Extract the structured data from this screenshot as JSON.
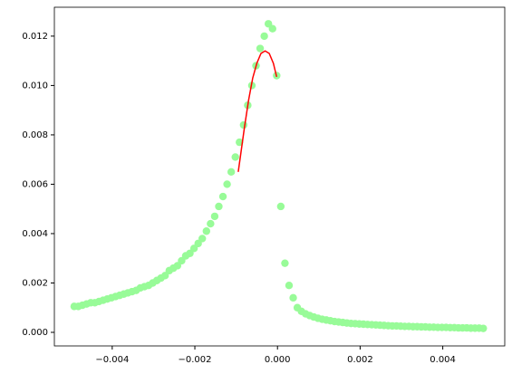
{
  "chart_data": {
    "type": "scatter",
    "xlim": [
      -0.0054,
      0.0055
    ],
    "ylim": [
      -0.00055,
      0.01317
    ],
    "xticks": [
      {
        "value": -0.004,
        "label": "−0.004"
      },
      {
        "value": -0.002,
        "label": "−0.002"
      },
      {
        "value": 0,
        "label": "0.000"
      },
      {
        "value": 0.002,
        "label": "0.002"
      },
      {
        "value": 0.004,
        "label": "0.004"
      }
    ],
    "yticks": [
      {
        "value": 0,
        "label": "0.000"
      },
      0.002,
      0.004,
      0.006,
      0.008,
      {
        "value": 0.01,
        "label": "0.010"
      },
      0.012
    ],
    "series": [
      {
        "type": "scatter",
        "color": "#98fb98",
        "x": [
          -0.00492,
          -0.00482,
          -0.00472,
          -0.00462,
          -0.00452,
          -0.00442,
          -0.00432,
          -0.00422,
          -0.00412,
          -0.00402,
          -0.00392,
          -0.00382,
          -0.00372,
          -0.00362,
          -0.00352,
          -0.00342,
          -0.00332,
          -0.00322,
          -0.00312,
          -0.00302,
          -0.00292,
          -0.00282,
          -0.00272,
          -0.00262,
          -0.00252,
          -0.00242,
          -0.00232,
          -0.00222,
          -0.00212,
          -0.00202,
          -0.00192,
          -0.00182,
          -0.00172,
          -0.00162,
          -0.00152,
          -0.00142,
          -0.00132,
          -0.00122,
          -0.00112,
          -0.00102,
          -0.00092,
          -0.00082,
          -0.00072,
          -0.00062,
          -0.00052,
          -0.00042,
          -0.00032,
          -0.00022,
          -0.00012,
          -2e-05,
          8e-05,
          0.00018,
          0.00028,
          0.00038,
          0.00048,
          0.00058,
          0.00068,
          0.00078,
          0.00088,
          0.00098,
          0.00108,
          0.00118,
          0.00128,
          0.00138,
          0.00148,
          0.00158,
          0.00168,
          0.00178,
          0.00188,
          0.00198,
          0.00208,
          0.00218,
          0.00228,
          0.00238,
          0.00248,
          0.00258,
          0.00268,
          0.00278,
          0.00288,
          0.00298,
          0.00308,
          0.00318,
          0.00328,
          0.00338,
          0.00348,
          0.00358,
          0.00368,
          0.00378,
          0.00388,
          0.00398,
          0.00408,
          0.00418,
          0.00428,
          0.00438,
          0.00448,
          0.00458,
          0.00468,
          0.00478,
          0.00488,
          0.00498
        ],
        "values": [
          0.00105,
          0.00105,
          0.0011,
          0.00115,
          0.0012,
          0.0012,
          0.00125,
          0.0013,
          0.00135,
          0.0014,
          0.00145,
          0.0015,
          0.00155,
          0.0016,
          0.00165,
          0.0017,
          0.0018,
          0.00185,
          0.0019,
          0.002,
          0.0021,
          0.0022,
          0.0023,
          0.0025,
          0.0026,
          0.0027,
          0.0029,
          0.0031,
          0.0032,
          0.0034,
          0.0036,
          0.0038,
          0.0041,
          0.0044,
          0.0047,
          0.0051,
          0.0055,
          0.006,
          0.0065,
          0.0071,
          0.0077,
          0.0084,
          0.0092,
          0.01,
          0.0108,
          0.0115,
          0.012,
          0.0125,
          0.0123,
          0.0104,
          0.0051,
          0.0028,
          0.0019,
          0.0014,
          0.001,
          0.00085,
          0.00075,
          0.00068,
          0.00062,
          0.00057,
          0.00053,
          0.0005,
          0.00047,
          0.00044,
          0.00042,
          0.0004,
          0.00038,
          0.00036,
          0.00035,
          0.00034,
          0.00033,
          0.00032,
          0.00031,
          0.0003,
          0.00029,
          0.00028,
          0.00027,
          0.00026,
          0.00026,
          0.00025,
          0.00024,
          0.00024,
          0.00023,
          0.00023,
          0.00022,
          0.00022,
          0.00021,
          0.00021,
          0.0002,
          0.0002,
          0.0002,
          0.00019,
          0.00019,
          0.00018,
          0.00018,
          0.00018,
          0.00017,
          0.00017,
          0.00017,
          0.00016
        ]
      },
      {
        "type": "line",
        "color": "#ff0000",
        "x": [
          -0.00095,
          -0.0009,
          -0.0008,
          -0.0007,
          -0.0006,
          -0.0005,
          -0.0004,
          -0.0003,
          -0.0002,
          -0.0001,
          -2e-05
        ],
        "values": [
          0.0065,
          0.0071,
          0.0083,
          0.0094,
          0.0103,
          0.0109,
          0.0113,
          0.0114,
          0.0113,
          0.0109,
          0.01035
        ]
      }
    ]
  }
}
